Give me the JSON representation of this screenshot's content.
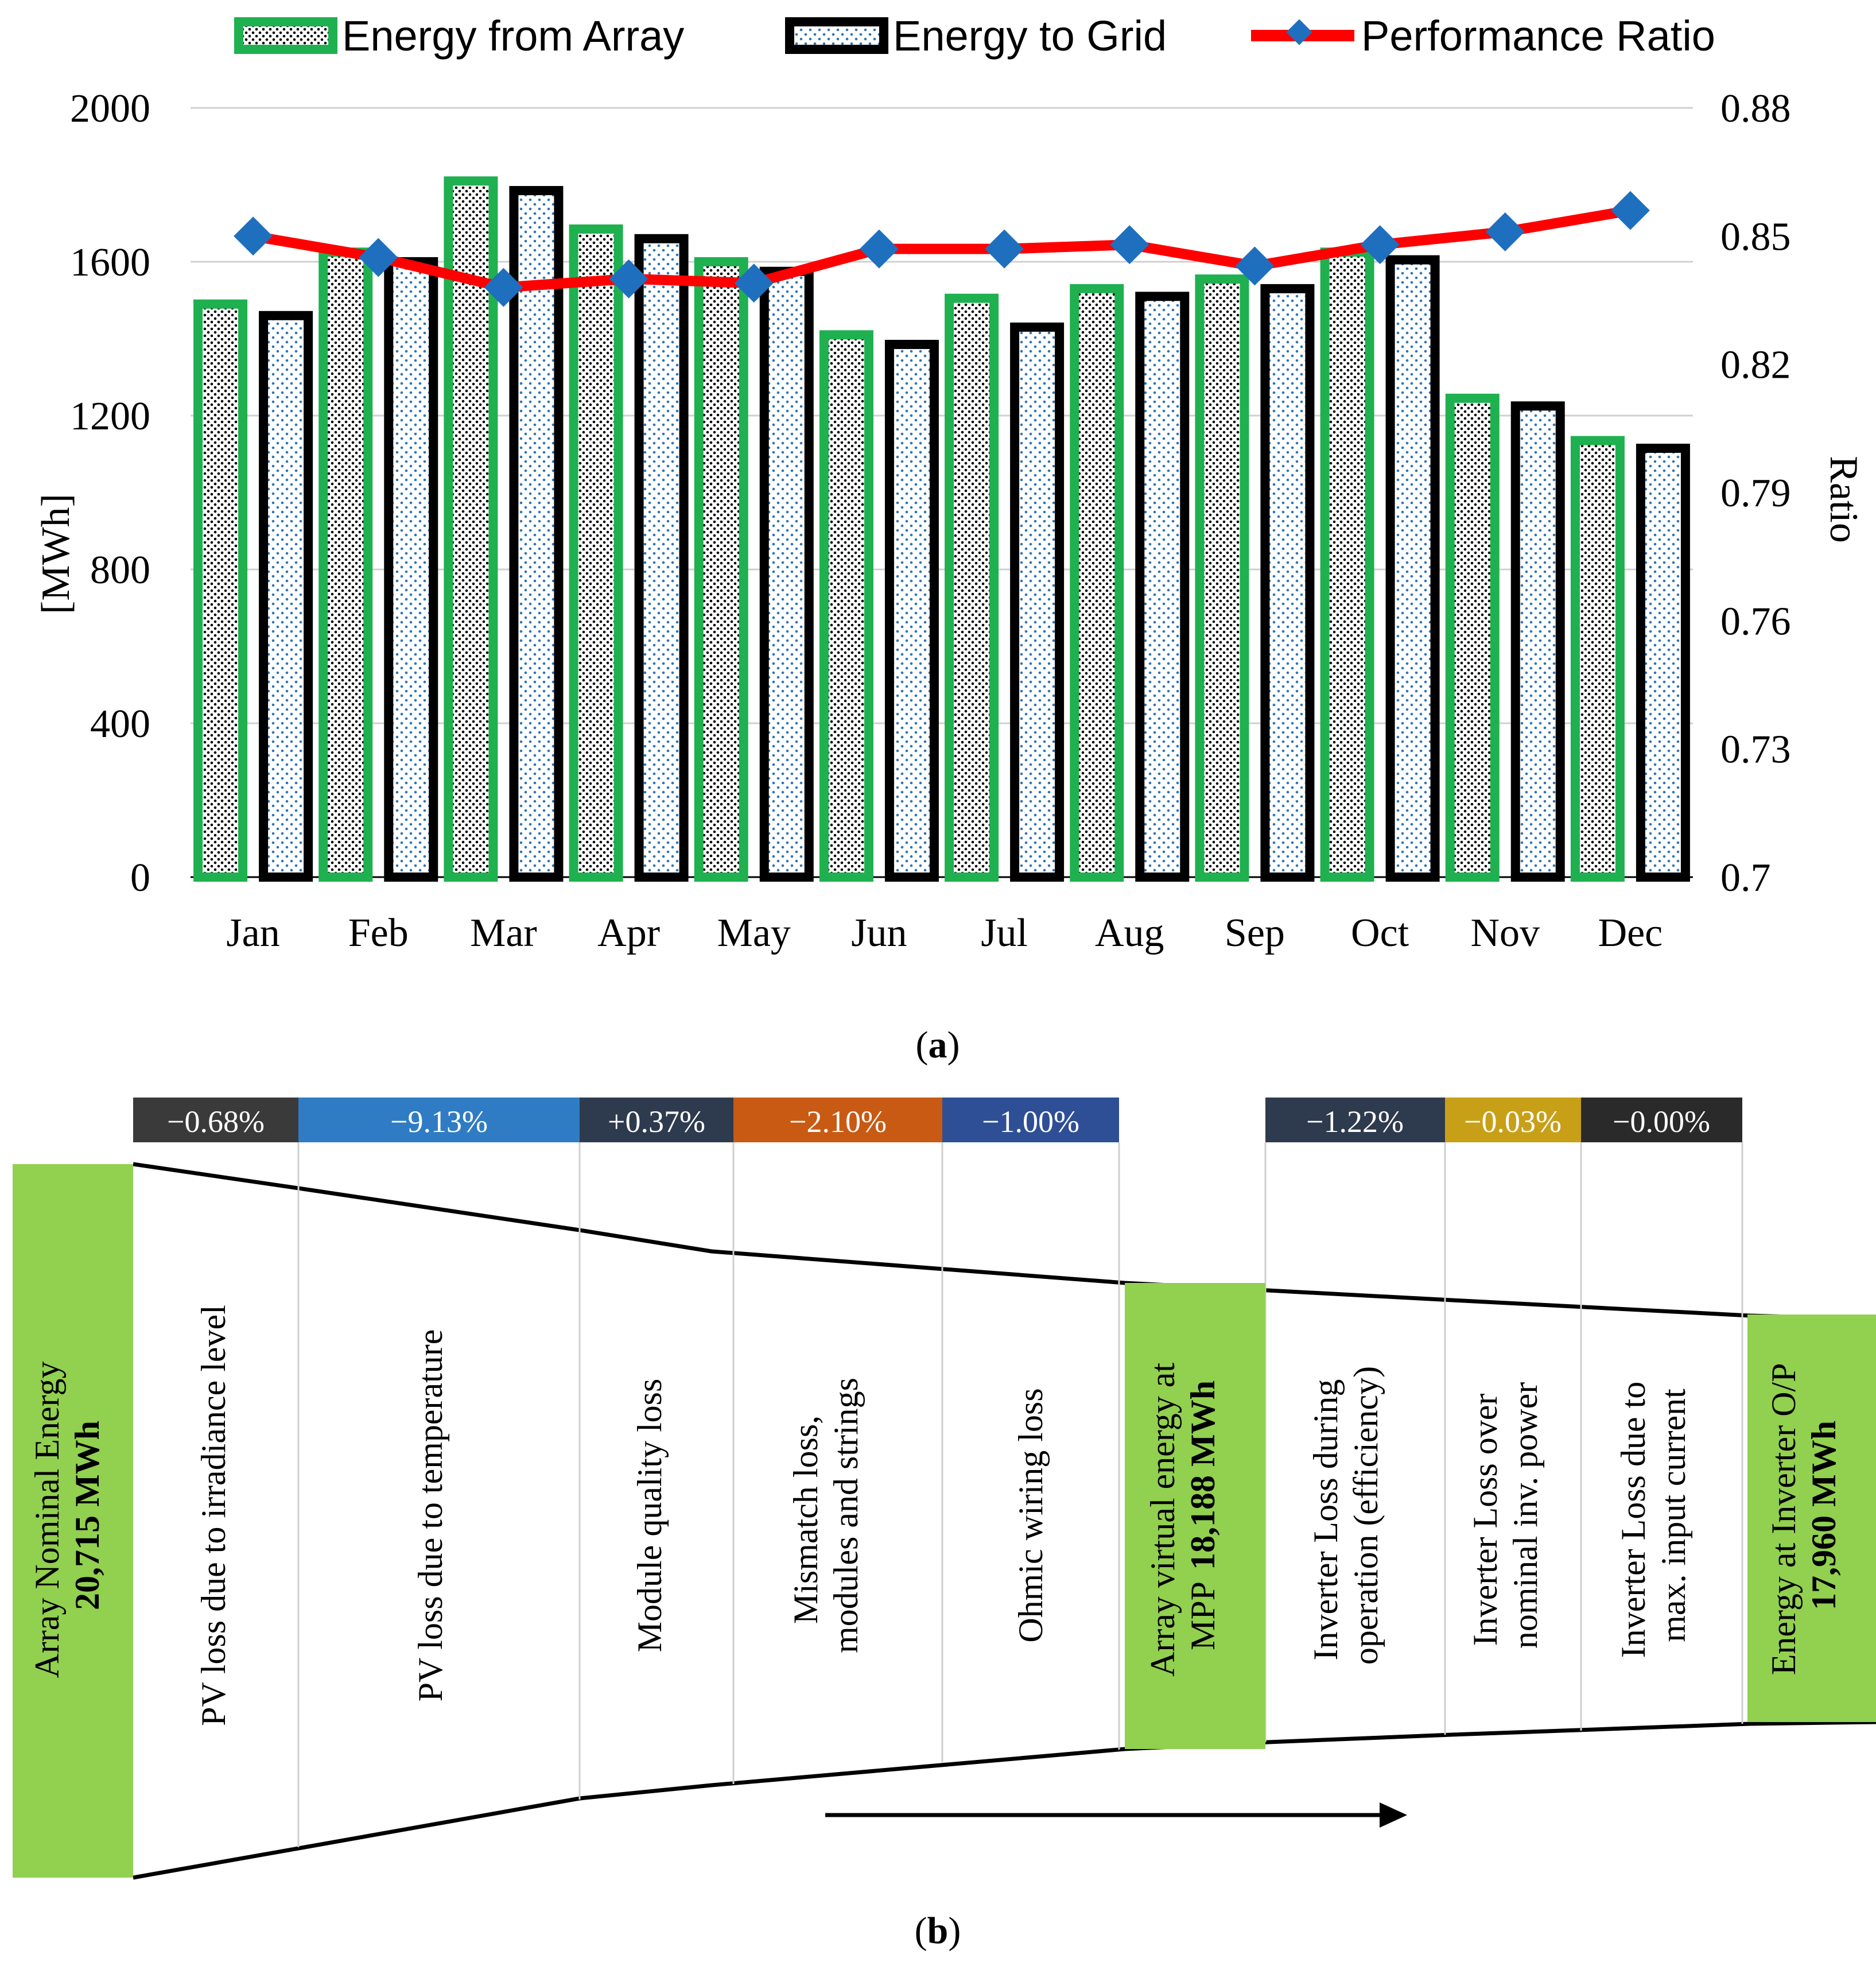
{
  "chart_data": [
    {
      "type": "bar",
      "panel_label": "a",
      "categories": [
        "Jan",
        "Feb",
        "Mar",
        "Apr",
        "May",
        "Jun",
        "Jul",
        "Aug",
        "Sep",
        "Oct",
        "Nov",
        "Dec"
      ],
      "series": [
        {
          "name": "Energy from Array",
          "axis": "left",
          "values": [
            1490,
            1625,
            1810,
            1685,
            1600,
            1410,
            1505,
            1530,
            1555,
            1625,
            1245,
            1135
          ]
        },
        {
          "name": "Energy to Grid",
          "axis": "left",
          "values": [
            1460,
            1600,
            1785,
            1660,
            1575,
            1385,
            1430,
            1510,
            1530,
            1605,
            1225,
            1115
          ]
        },
        {
          "name": "Performance Ratio",
          "axis": "right",
          "kind": "line",
          "values": [
            0.85,
            0.845,
            0.838,
            0.84,
            0.839,
            0.847,
            0.847,
            0.848,
            0.843,
            0.848,
            0.851,
            0.856
          ]
        }
      ],
      "ylabel": "[MWh]",
      "ylim": [
        0,
        2000
      ],
      "yticks": [
        "0",
        "400",
        "800",
        "1200",
        "1600",
        "2000"
      ],
      "y2label": "Ratio",
      "y2lim": [
        0.7,
        0.88
      ],
      "y2ticks": [
        "0.7",
        "0.73",
        "0.76",
        "0.79",
        "0.82",
        "0.85",
        "0.88"
      ],
      "legend_position": "top",
      "grid": true,
      "colors": {
        "array": "#1fb050",
        "grid": "#000000",
        "pr_line": "#ff0000",
        "pr_marker": "#1f6fbf",
        "dots_blue": "#2e75b6"
      }
    },
    {
      "type": "waterfall",
      "panel_label": "b",
      "start": {
        "label": "Array Nominal Energy",
        "value_text": "20,715 MWh",
        "value": 20715
      },
      "stages": [
        {
          "label_lines": [
            "PV loss due to irradiance level"
          ],
          "pct": "−0.68%",
          "color": "#3a3a3a"
        },
        {
          "label_lines": [
            "PV loss due to temperature"
          ],
          "pct": "−9.13%",
          "color": "#2f7cc4"
        },
        {
          "label_lines": [
            "Module quality loss"
          ],
          "pct": "+0.37%",
          "color": "#2e3a4e"
        },
        {
          "label_lines": [
            "Mismatch loss,",
            "modules and strings"
          ],
          "pct": "−2.10%",
          "color": "#c85a14"
        },
        {
          "label_lines": [
            "Ohmic wiring loss"
          ],
          "pct": "−1.00%",
          "color": "#2e4f96"
        }
      ],
      "mid": {
        "label_lines": [
          "Array virtual energy at",
          "MPP"
        ],
        "value_text": "18,188 MWh",
        "value": 18188
      },
      "stages2": [
        {
          "label_lines": [
            "Inverter Loss during",
            "operation (efficiency)"
          ],
          "pct": "−1.22%",
          "color": "#2e3a4e"
        },
        {
          "label_lines": [
            "Inverter Loss over",
            "nominal inv. power"
          ],
          "pct": "−0.03%",
          "color": "#c8a018"
        },
        {
          "label_lines": [
            "Inverter Loss due to",
            "max. input current"
          ],
          "pct": "−0.00%",
          "color": "#2a2a2a"
        }
      ],
      "end": {
        "label_lines": [
          "Energy at Inverter O/P"
        ],
        "value_text": "17,960 MWh",
        "value": 17960
      },
      "colors": {
        "node_fill": "#92d050"
      }
    }
  ],
  "captions": {
    "a": "a",
    "b": "b"
  }
}
